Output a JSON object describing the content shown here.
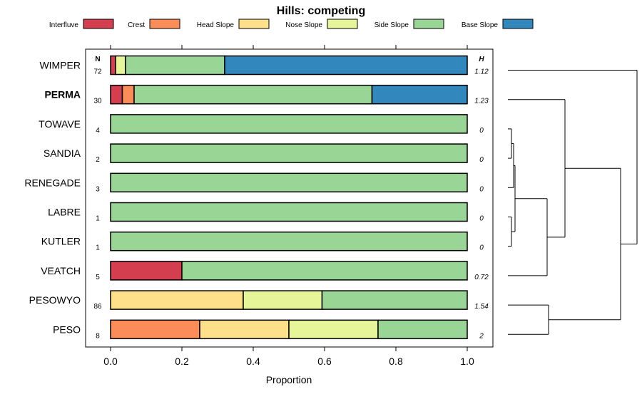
{
  "chart_data": {
    "type": "bar",
    "subtype": "stacked-horizontal-proportion",
    "title": "Hills: competing",
    "xlabel": "Proportion",
    "ylabel": "",
    "xlim": [
      0,
      1
    ],
    "x_ticks": [
      "0.0",
      "0.2",
      "0.4",
      "0.6",
      "0.8",
      "1.0"
    ],
    "x_tick_values": [
      0,
      0.2,
      0.4,
      0.6,
      0.8,
      1.0
    ],
    "n_header": "N",
    "h_header": "H",
    "legend": [
      {
        "name": "Interfluve",
        "color": "#D53E4F"
      },
      {
        "name": "Crest",
        "color": "#FC8D59"
      },
      {
        "name": "Head Slope",
        "color": "#FEE08B"
      },
      {
        "name": "Nose Slope",
        "color": "#E6F598"
      },
      {
        "name": "Side Slope",
        "color": "#99D594"
      },
      {
        "name": "Base Slope",
        "color": "#3288BD"
      }
    ],
    "categories": [
      "WIMPER",
      "PERMA",
      "TOWAVE",
      "SANDIA",
      "RENEGADE",
      "LABRE",
      "KUTLER",
      "VEATCH",
      "PESOWYO",
      "PESO"
    ],
    "highlight": "PERMA",
    "N": [
      "72",
      "30",
      "4",
      "2",
      "3",
      "1",
      "1",
      "5",
      "86",
      "8"
    ],
    "H": [
      "1.12",
      "1.23",
      "0",
      "0",
      "0",
      "0",
      "0",
      "0.72",
      "1.54",
      "2"
    ],
    "series": [
      {
        "name": "Interfluve",
        "values": [
          0.014,
          0.033,
          0,
          0,
          0,
          0,
          0,
          0.2,
          0,
          0
        ]
      },
      {
        "name": "Crest",
        "values": [
          0,
          0.033,
          0,
          0,
          0,
          0,
          0,
          0,
          0,
          0.25
        ]
      },
      {
        "name": "Head Slope",
        "values": [
          0,
          0,
          0,
          0,
          0,
          0,
          0,
          0,
          0.372,
          0.25
        ]
      },
      {
        "name": "Nose Slope",
        "values": [
          0.028,
          0,
          0,
          0,
          0,
          0,
          0,
          0,
          0.221,
          0.25
        ]
      },
      {
        "name": "Side Slope",
        "values": [
          0.278,
          0.667,
          1,
          1,
          1,
          1,
          1,
          0.8,
          0.407,
          0.25
        ]
      },
      {
        "name": "Base Slope",
        "values": [
          0.68,
          0.267,
          0,
          0,
          0,
          0,
          0,
          0,
          0,
          0
        ]
      }
    ]
  }
}
